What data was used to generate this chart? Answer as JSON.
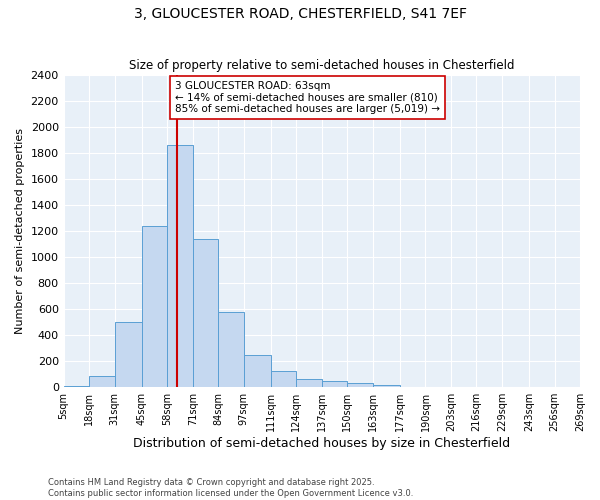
{
  "title": "3, GLOUCESTER ROAD, CHESTERFIELD, S41 7EF",
  "subtitle": "Size of property relative to semi-detached houses in Chesterfield",
  "xlabel": "Distribution of semi-detached houses by size in Chesterfield",
  "ylabel": "Number of semi-detached properties",
  "footer_line1": "Contains HM Land Registry data © Crown copyright and database right 2025.",
  "footer_line2": "Contains public sector information licensed under the Open Government Licence v3.0.",
  "annotation_text": "3 GLOUCESTER ROAD: 63sqm\n← 14% of semi-detached houses are smaller (810)\n85% of semi-detached houses are larger (5,019) →",
  "bin_edges": [
    5,
    18,
    31,
    45,
    58,
    71,
    84,
    97,
    111,
    124,
    137,
    150,
    163,
    177,
    190,
    203,
    216,
    229,
    243,
    256,
    269
  ],
  "bin_labels": [
    "5sqm",
    "18sqm",
    "31sqm",
    "45sqm",
    "58sqm",
    "71sqm",
    "84sqm",
    "97sqm",
    "111sqm",
    "124sqm",
    "137sqm",
    "150sqm",
    "163sqm",
    "177sqm",
    "190sqm",
    "203sqm",
    "216sqm",
    "229sqm",
    "243sqm",
    "256sqm",
    "269sqm"
  ],
  "bar_heights": [
    10,
    85,
    500,
    1240,
    1860,
    1140,
    580,
    245,
    125,
    65,
    50,
    35,
    20,
    0,
    0,
    0,
    0,
    0,
    0,
    0
  ],
  "bar_color": "#c5d8f0",
  "bar_edge_color": "#5a9fd4",
  "vline_x": 63,
  "vline_color": "#cc0000",
  "background_color": "#e8f0f8",
  "grid_color": "#ffffff",
  "ylim": [
    0,
    2400
  ],
  "yticks": [
    0,
    200,
    400,
    600,
    800,
    1000,
    1200,
    1400,
    1600,
    1800,
    2000,
    2200,
    2400
  ]
}
